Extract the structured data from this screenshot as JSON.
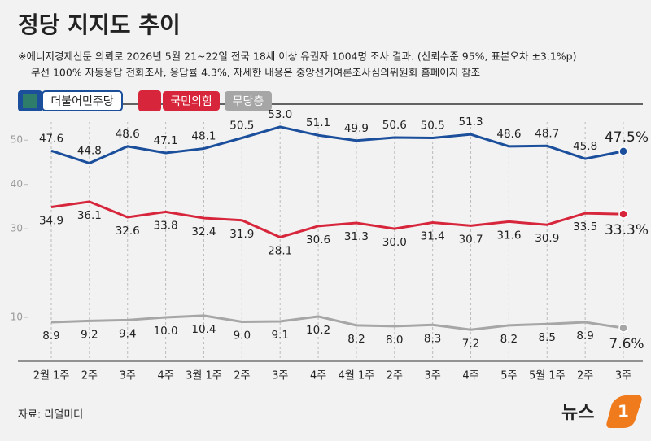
{
  "chart_data": {
    "type": "line",
    "title": "정당 지지도 추이",
    "subtitle": [
      "※에너지경제신문 의뢰로 2026년 5월 21~22일 전국 18세 이상 유권자 1004명 조사 결과. (신뢰수준 95%, 표본오차 ±3.1%p)",
      "무선 100% 자동응답 전화조사, 응답률 4.3%, 자세한 내용은 중앙선거여론조사심의위원회 홈페이지 참조"
    ],
    "source": "자료: 리얼미터",
    "logo": [
      "뉴스",
      "1"
    ],
    "categories": [
      "2월 1주",
      "2주",
      "3주",
      "4주",
      "3월 1주",
      "2주",
      "3주",
      "4주",
      "4월 1주",
      "2주",
      "3주",
      "4주",
      "5주",
      "5월 1주",
      "2주",
      "3주"
    ],
    "series": [
      {
        "name": "더불어민주당",
        "color": "#1b4f9c",
        "values": [
          47.6,
          44.8,
          48.6,
          47.1,
          48.1,
          50.5,
          53.0,
          51.1,
          49.9,
          50.6,
          50.5,
          51.3,
          48.6,
          48.7,
          45.8,
          47.5
        ],
        "value_labels": [
          "47.6",
          "44.8",
          "48.6",
          "47.1",
          "48.1",
          "50.5",
          "53.0",
          "51.1",
          "49.9",
          "50.6",
          "50.5",
          "51.3",
          "48.6",
          "48.7",
          "45.8",
          "47.5%"
        ]
      },
      {
        "name": "국민의힘",
        "color": "#d7263b",
        "values": [
          34.9,
          36.1,
          32.6,
          33.8,
          32.4,
          31.9,
          28.1,
          30.6,
          31.3,
          30.0,
          31.4,
          30.7,
          31.6,
          30.9,
          33.5,
          33.3
        ],
        "value_labels": [
          "34.9",
          "36.1",
          "32.6",
          "33.8",
          "32.4",
          "31.9",
          "28.1",
          "30.6",
          "31.3",
          "30.0",
          "31.4",
          "30.7",
          "31.6",
          "30.9",
          "33.5",
          "33.3%"
        ]
      },
      {
        "name": "무당층",
        "color": "#a6a6a6",
        "values": [
          8.9,
          9.2,
          9.4,
          10.0,
          10.4,
          9.0,
          9.1,
          10.2,
          8.2,
          8.0,
          8.3,
          7.2,
          8.2,
          8.5,
          8.9,
          7.6
        ],
        "value_labels": [
          "8.9",
          "9.2",
          "9.4",
          "10.0",
          "10.4",
          "9.0",
          "9.1",
          "10.2",
          "8.2",
          "8.0",
          "8.3",
          "7.2",
          "8.2",
          "8.5",
          "8.9",
          "7.6%"
        ]
      }
    ],
    "ylim": [
      0,
      55
    ],
    "yticks": [
      10,
      30,
      40,
      50
    ],
    "grid": true
  }
}
